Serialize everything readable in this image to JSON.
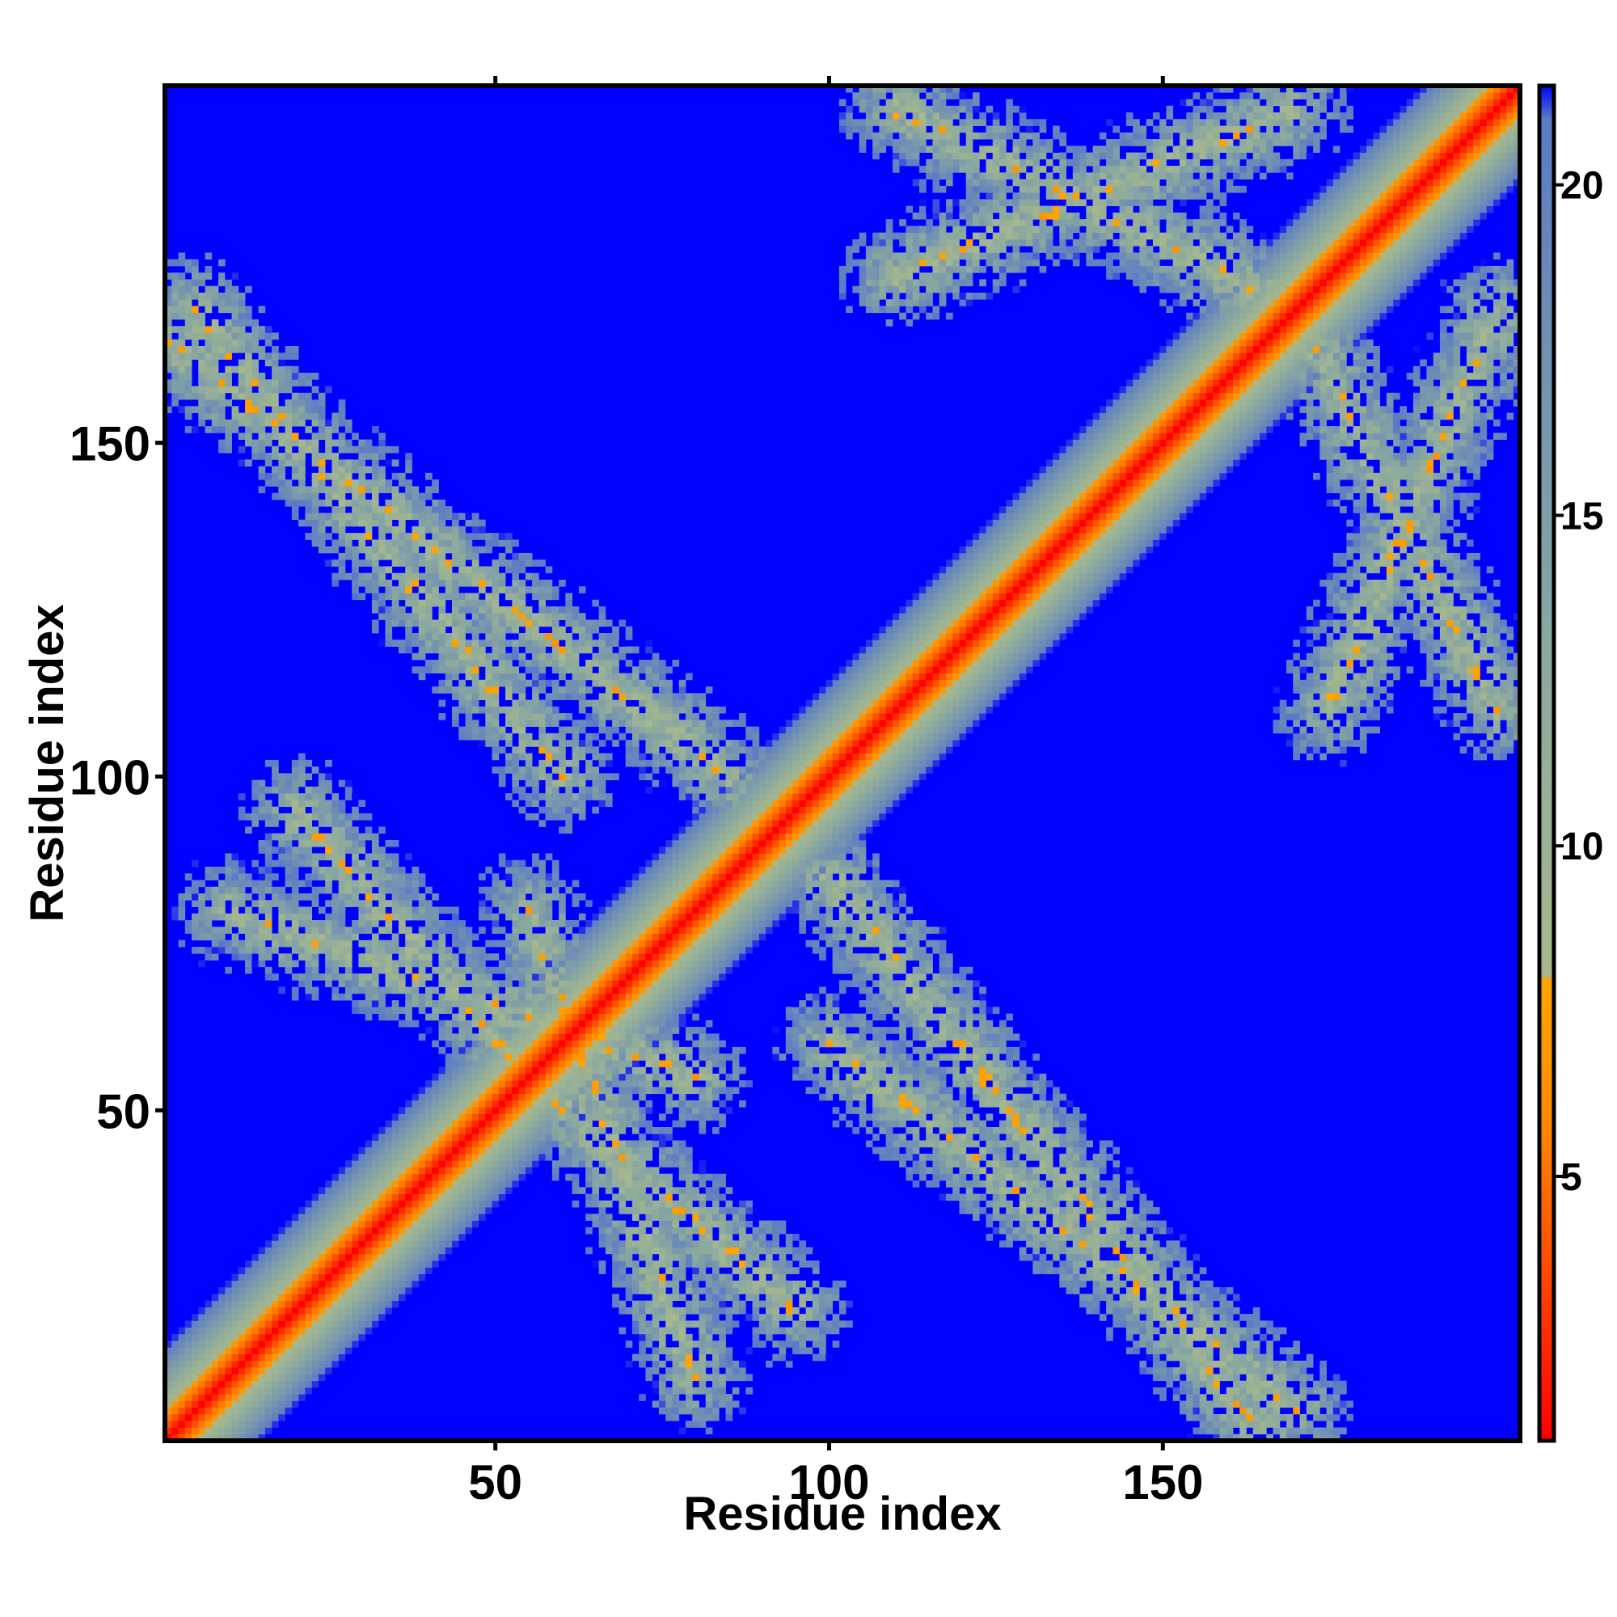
{
  "chart_data": {
    "type": "heatmap",
    "title": "",
    "xlabel": "Residue index",
    "ylabel": "Residue index",
    "n_residues": 203,
    "xlim": [
      1,
      203
    ],
    "ylim": [
      1,
      203
    ],
    "x_ticks": [
      50,
      100,
      150
    ],
    "y_ticks": [
      50,
      100,
      150
    ],
    "colorbar": {
      "range": [
        1,
        21.5
      ],
      "ticks": [
        5,
        10,
        15,
        20
      ],
      "cutoff": 8,
      "stops": [
        {
          "value": 1,
          "color": "#ff0000"
        },
        {
          "value": 4,
          "color": "#ff5500"
        },
        {
          "value": 6,
          "color": "#ff8c00"
        },
        {
          "value": 8,
          "color": "#ffa500"
        },
        {
          "value": 8.01,
          "color": "#a8b88c"
        },
        {
          "value": 13,
          "color": "#8aa8a0"
        },
        {
          "value": 18,
          "color": "#6f8db4"
        },
        {
          "value": 21,
          "color": "#5a7ac8"
        },
        {
          "value": 21.5,
          "color": "#0000ff"
        }
      ]
    },
    "background_color": "#0000ff",
    "description_of_structure": {
      "main_diagonal": "i == j distance 0 (red), widening band to ~20",
      "contact_bands": [
        {
          "i_range": [
            1,
            85
          ],
          "j_range": [
            165,
            100
          ],
          "kind": "antiparallel"
        },
        {
          "i_range": [
            10,
            80
          ],
          "j_range": [
            80,
            55
          ],
          "kind": "antiparallel"
        },
        {
          "i_range": [
            55,
            95
          ],
          "j_range": [
            55,
            20
          ],
          "kind": "antiparallel"
        },
        {
          "i_range": [
            100,
            170
          ],
          "j_range": [
            60,
            5
          ],
          "kind": "antiparallel"
        },
        {
          "i_range": [
            110,
            170
          ],
          "j_range": [
            175,
            200
          ],
          "kind": "antiparallel"
        },
        {
          "i_range": [
            170,
            200
          ],
          "j_range": [
            170,
            110
          ],
          "kind": "antiparallel"
        }
      ]
    }
  }
}
